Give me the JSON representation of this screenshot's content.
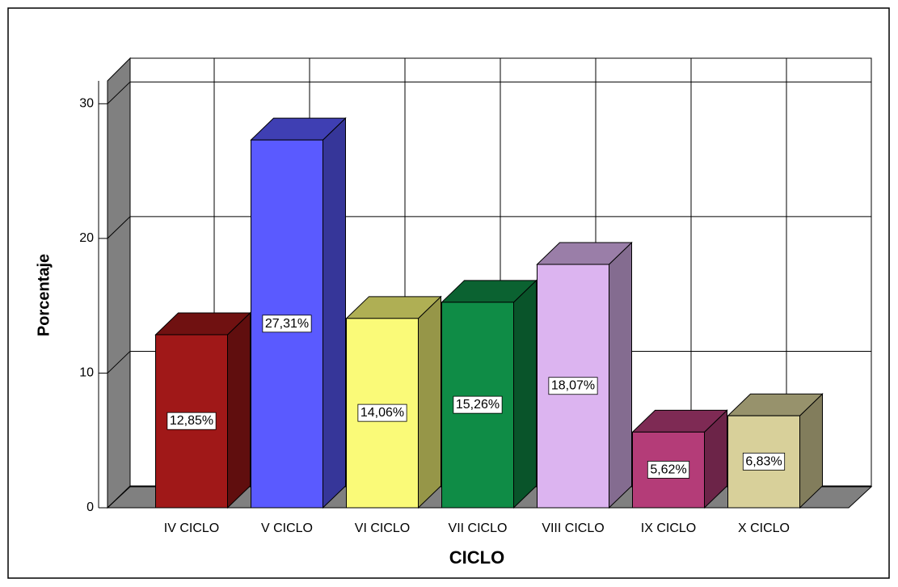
{
  "chart_data": {
    "type": "bar3d",
    "categories": [
      "IV CICLO",
      "V CICLO",
      "VI CICLO",
      "VII CICLO",
      "VIII CICLO",
      "IX CICLO",
      "X CICLO"
    ],
    "values": [
      12.85,
      27.31,
      14.06,
      15.26,
      18.07,
      5.62,
      6.83
    ],
    "value_labels": [
      "12,85%",
      "27,31%",
      "14,06%",
      "15,26%",
      "18,07%",
      "5,62%",
      "6,83%"
    ],
    "colors": [
      "#a01818",
      "#5a5aff",
      "#fafa78",
      "#0f8c46",
      "#dcb4f0",
      "#b43c78",
      "#d8d09a"
    ],
    "y_label": "Porcentaje",
    "x_label": "CICLO",
    "ylim": [
      0,
      31.7
    ],
    "yticks": [
      0,
      10,
      20,
      30
    ],
    "grid": true
  }
}
